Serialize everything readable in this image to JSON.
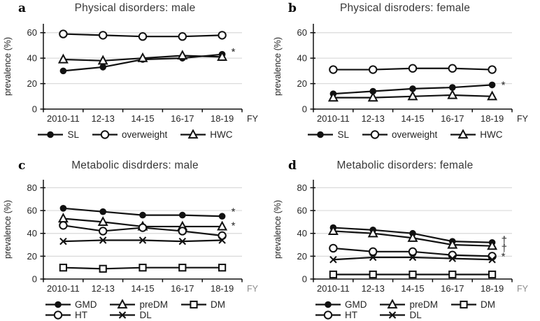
{
  "colors": {
    "line": "#111111",
    "axis": "#111111",
    "grid": "#d9d9d9",
    "text": "#262626"
  },
  "chart_data": [
    {
      "type": "line",
      "panel_letter": "a",
      "title": "Physical disorders: male",
      "ylabel": "prevalence (%)",
      "xlabel": "FY",
      "xlabel_color": "#262626",
      "categories": [
        "2010-11",
        "12-13",
        "14-15",
        "16-17",
        "18-19"
      ],
      "ylim": [
        0,
        67
      ],
      "yticks": [
        0,
        20,
        40,
        60
      ],
      "grid": true,
      "legend_position": "bottom",
      "legend_cols": 3,
      "series": [
        {
          "name": "SL",
          "marker": "circle-filled",
          "values": [
            30,
            33,
            39,
            40,
            43
          ]
        },
        {
          "name": "overweight",
          "marker": "circle-open",
          "values": [
            59,
            58,
            57,
            57,
            58
          ]
        },
        {
          "name": "HWC",
          "marker": "triangle-open",
          "values": [
            39,
            38,
            40,
            42,
            41
          ]
        }
      ],
      "annotations": [
        {
          "text": "*",
          "y": 45
        }
      ]
    },
    {
      "type": "line",
      "panel_letter": "b",
      "title": "Physical disroders: female",
      "ylabel": "prevalence (%)",
      "xlabel": "FY",
      "xlabel_color": "#262626",
      "categories": [
        "2010-11",
        "12-13",
        "14-15",
        "16-17",
        "18-19"
      ],
      "ylim": [
        0,
        67
      ],
      "yticks": [
        0,
        20,
        40,
        60
      ],
      "grid": true,
      "legend_position": "bottom",
      "legend_cols": 3,
      "series": [
        {
          "name": "SL",
          "marker": "circle-filled",
          "values": [
            12,
            14,
            16,
            17,
            19
          ]
        },
        {
          "name": "overweight",
          "marker": "circle-open",
          "values": [
            31,
            31,
            32,
            32,
            31
          ]
        },
        {
          "name": "HWC",
          "marker": "triangle-open",
          "values": [
            9,
            9,
            10,
            11,
            10
          ]
        }
      ],
      "annotations": [
        {
          "text": "*",
          "y": 19
        }
      ]
    },
    {
      "type": "line",
      "panel_letter": "c",
      "title": "Metabolic disdrders: male",
      "ylabel": "prevalence (%)",
      "xlabel": "FY",
      "xlabel_color": "#8c8c8c",
      "categories": [
        "2010-11",
        "12-13",
        "14-15",
        "16-17",
        "18-19"
      ],
      "ylim": [
        0,
        87
      ],
      "yticks": [
        0,
        20,
        40,
        60,
        80
      ],
      "grid": true,
      "legend_position": "bottom",
      "legend_cols": 3,
      "series": [
        {
          "name": "GMD",
          "marker": "circle-filled",
          "values": [
            62,
            59,
            56,
            56,
            55
          ]
        },
        {
          "name": "preDM",
          "marker": "triangle-open",
          "values": [
            53,
            50,
            46,
            46,
            46
          ]
        },
        {
          "name": "DM",
          "marker": "square-open",
          "values": [
            10,
            9,
            10,
            10,
            10
          ]
        },
        {
          "name": "HT",
          "marker": "circle-open",
          "values": [
            47,
            42,
            45,
            42,
            38
          ]
        },
        {
          "name": "DL",
          "marker": "x",
          "values": [
            33,
            34,
            34,
            33,
            34
          ]
        }
      ],
      "annotations": [
        {
          "text": "*",
          "y": 59
        },
        {
          "text": "*",
          "y": 47
        }
      ]
    },
    {
      "type": "line",
      "panel_letter": "d",
      "title": "Metabolic disorders: female",
      "ylabel": "prevalence (%)",
      "xlabel": "FY",
      "xlabel_color": "#8c8c8c",
      "categories": [
        "2010-11",
        "12-13",
        "14-15",
        "16-17",
        "18-19"
      ],
      "ylim": [
        0,
        87
      ],
      "yticks": [
        0,
        20,
        40,
        60,
        80
      ],
      "grid": true,
      "legend_position": "bottom",
      "legend_cols": 3,
      "series": [
        {
          "name": "GMD",
          "marker": "circle-filled",
          "values": [
            45,
            43,
            40,
            33,
            32
          ]
        },
        {
          "name": "preDM",
          "marker": "triangle-open",
          "values": [
            42,
            40,
            36,
            30,
            29
          ]
        },
        {
          "name": "DM",
          "marker": "square-open",
          "values": [
            4,
            4,
            4,
            4,
            4
          ]
        },
        {
          "name": "HT",
          "marker": "circle-open",
          "values": [
            27,
            24,
            24,
            21,
            20
          ]
        },
        {
          "name": "DL",
          "marker": "x",
          "values": [
            17,
            19,
            19,
            18,
            17
          ]
        }
      ],
      "annotations": [
        {
          "text": "†",
          "y": 34
        },
        {
          "text": "†",
          "y": 27
        },
        {
          "text": "*",
          "y": 20
        }
      ]
    }
  ]
}
